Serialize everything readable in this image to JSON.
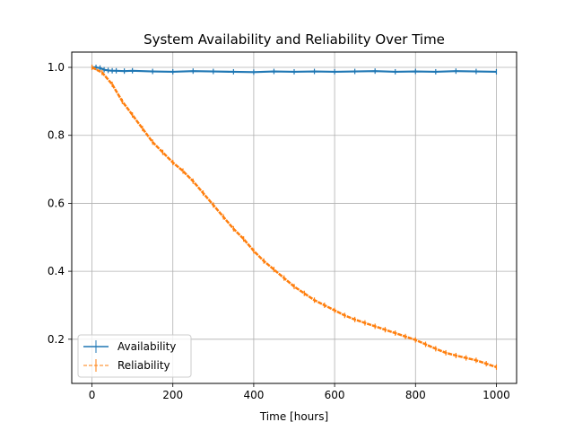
{
  "chart_data": {
    "type": "line",
    "title": "System Availability and Reliability Over Time",
    "xlabel": "Time [hours]",
    "ylabel": "",
    "xlim": [
      -50,
      1050
    ],
    "ylim": [
      0.07,
      1.045
    ],
    "xticks": [
      0,
      200,
      400,
      600,
      800,
      1000
    ],
    "xtick_labels": [
      "0",
      "200",
      "400",
      "600",
      "800",
      "1000"
    ],
    "yticks": [
      0.2,
      0.4,
      0.6,
      0.8,
      1.0
    ],
    "ytick_labels": [
      "0.2",
      "0.4",
      "0.6",
      "0.8",
      "1.0"
    ],
    "grid": true,
    "legend_position": "lower-left",
    "series": [
      {
        "name": "Availability",
        "color": "#1f77b4",
        "line_style": "solid",
        "marker": "vertical-error-tick",
        "x": [
          0,
          10,
          20,
          30,
          40,
          50,
          60,
          80,
          100,
          150,
          200,
          250,
          300,
          350,
          400,
          450,
          500,
          550,
          600,
          650,
          700,
          750,
          800,
          850,
          900,
          950,
          1000
        ],
        "y": [
          1.0,
          1.0,
          0.998,
          0.993,
          0.991,
          0.99,
          0.99,
          0.989,
          0.99,
          0.988,
          0.987,
          0.989,
          0.988,
          0.987,
          0.986,
          0.988,
          0.987,
          0.988,
          0.987,
          0.988,
          0.989,
          0.987,
          0.988,
          0.987,
          0.989,
          0.988,
          0.987
        ]
      },
      {
        "name": "Reliability",
        "color": "#ff7f0e",
        "line_style": "dashed",
        "marker": "vertical-error-tick",
        "x": [
          0,
          25,
          50,
          75,
          100,
          125,
          150,
          175,
          200,
          225,
          250,
          275,
          300,
          325,
          350,
          375,
          400,
          425,
          450,
          475,
          500,
          525,
          550,
          575,
          600,
          625,
          650,
          675,
          700,
          725,
          750,
          775,
          800,
          825,
          850,
          875,
          900,
          925,
          950,
          975,
          1000
        ],
        "y": [
          1.0,
          0.985,
          0.95,
          0.9,
          0.86,
          0.82,
          0.78,
          0.75,
          0.72,
          0.695,
          0.665,
          0.63,
          0.595,
          0.56,
          0.525,
          0.495,
          0.46,
          0.43,
          0.405,
          0.38,
          0.355,
          0.335,
          0.315,
          0.3,
          0.285,
          0.27,
          0.258,
          0.248,
          0.238,
          0.228,
          0.218,
          0.208,
          0.198,
          0.185,
          0.172,
          0.16,
          0.152,
          0.145,
          0.138,
          0.128,
          0.118
        ]
      }
    ]
  }
}
